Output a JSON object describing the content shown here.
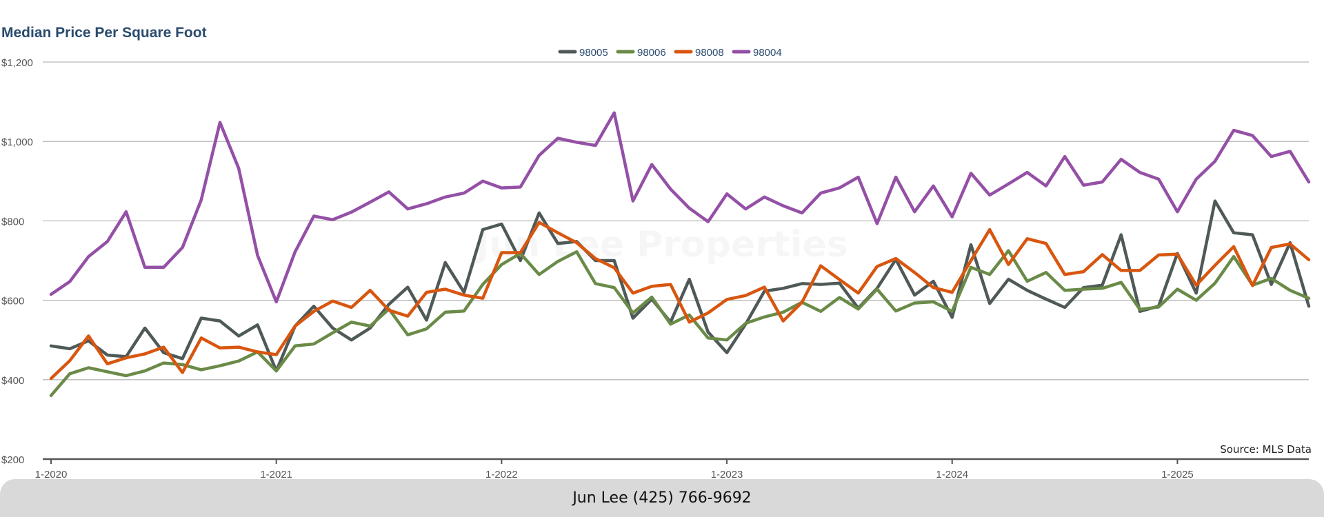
{
  "chart_data": {
    "type": "line",
    "title": "Median Price Per Square Foot",
    "source": "Source: MLS Data",
    "watermark": "Jun Lee Properties",
    "footer": "Jun Lee (425) 766-9692",
    "ylim": [
      200,
      1200
    ],
    "y_ticks": [
      200,
      400,
      600,
      800,
      1000,
      1200
    ],
    "y_tick_labels": [
      "$200",
      "$400",
      "$600",
      "$800",
      "$1,000",
      "$1,200"
    ],
    "x_tick_indices": [
      0,
      12,
      24,
      36,
      48,
      60
    ],
    "x_tick_labels": [
      "1-2020",
      "1-2021",
      "1-2022",
      "1-2023",
      "1-2024",
      "1-2025"
    ],
    "grid": true,
    "legend": "top-center",
    "x": [
      "1-2020",
      "2-2020",
      "3-2020",
      "4-2020",
      "5-2020",
      "6-2020",
      "7-2020",
      "8-2020",
      "9-2020",
      "10-2020",
      "11-2020",
      "12-2020",
      "1-2021",
      "2-2021",
      "3-2021",
      "4-2021",
      "5-2021",
      "6-2021",
      "7-2021",
      "8-2021",
      "9-2021",
      "10-2021",
      "11-2021",
      "12-2021",
      "1-2022",
      "2-2022",
      "3-2022",
      "4-2022",
      "5-2022",
      "6-2022",
      "7-2022",
      "8-2022",
      "9-2022",
      "10-2022",
      "11-2022",
      "12-2022",
      "1-2023",
      "2-2023",
      "3-2023",
      "4-2023",
      "5-2023",
      "6-2023",
      "7-2023",
      "8-2023",
      "9-2023",
      "10-2023",
      "11-2023",
      "12-2023",
      "1-2024",
      "2-2024",
      "3-2024",
      "4-2024",
      "5-2024",
      "6-2024",
      "7-2024",
      "8-2024",
      "9-2024",
      "10-2024",
      "11-2024",
      "12-2024",
      "1-2025",
      "2-2025",
      "3-2025",
      "4-2025",
      "5-2025",
      "6-2025",
      "7-2025",
      "8-2025"
    ],
    "series": [
      {
        "name": "98005",
        "color": "#4f5a58",
        "values": [
          485,
          478,
          498,
          462,
          458,
          530,
          468,
          453,
          555,
          548,
          510,
          538,
          422,
          535,
          585,
          530,
          500,
          530,
          590,
          633,
          550,
          695,
          620,
          778,
          792,
          700,
          820,
          743,
          748,
          700,
          700,
          555,
          603,
          545,
          653,
          520,
          468,
          540,
          623,
          630,
          642,
          640,
          643,
          580,
          630,
          703,
          613,
          648,
          557,
          740,
          592,
          653,
          625,
          603,
          582,
          632,
          638,
          765,
          572,
          585,
          718,
          618,
          850,
          770,
          765,
          640,
          745,
          585
        ]
      },
      {
        "name": "98006",
        "color": "#6a8b48",
        "values": [
          360,
          415,
          430,
          420,
          410,
          422,
          442,
          438,
          425,
          435,
          447,
          470,
          422,
          485,
          490,
          518,
          545,
          535,
          578,
          513,
          528,
          570,
          573,
          640,
          690,
          718,
          665,
          698,
          722,
          642,
          632,
          568,
          608,
          540,
          563,
          505,
          500,
          542,
          558,
          570,
          595,
          572,
          607,
          578,
          628,
          573,
          593,
          596,
          572,
          683,
          665,
          725,
          648,
          670,
          625,
          628,
          630,
          645,
          577,
          583,
          628,
          600,
          643,
          710,
          638,
          655,
          625,
          605
        ]
      },
      {
        "name": "98008",
        "color": "#d8560f",
        "values": [
          403,
          448,
          510,
          440,
          455,
          465,
          482,
          418,
          505,
          480,
          482,
          470,
          463,
          535,
          572,
          598,
          582,
          625,
          575,
          560,
          620,
          628,
          613,
          605,
          720,
          720,
          796,
          770,
          745,
          705,
          682,
          618,
          635,
          640,
          545,
          568,
          602,
          612,
          633,
          548,
          595,
          687,
          652,
          618,
          685,
          705,
          670,
          632,
          620,
          700,
          778,
          690,
          755,
          743,
          665,
          672,
          715,
          675,
          675,
          714,
          716,
          638,
          688,
          735,
          637,
          733,
          742,
          702
        ]
      },
      {
        "name": "98004",
        "color": "#9450a6",
        "values": [
          615,
          647,
          710,
          748,
          823,
          683,
          683,
          733,
          853,
          1048,
          932,
          713,
          596,
          722,
          812,
          803,
          822,
          847,
          873,
          830,
          843,
          860,
          870,
          900,
          883,
          885,
          965,
          1008,
          998,
          990,
          1072,
          850,
          942,
          880,
          832,
          798,
          868,
          830,
          860,
          838,
          820,
          870,
          883,
          910,
          793,
          910,
          823,
          888,
          810,
          920,
          865,
          893,
          922,
          888,
          962,
          890,
          898,
          955,
          922,
          905,
          823,
          905,
          950,
          1028,
          1015,
          962,
          975,
          898
        ]
      }
    ]
  }
}
